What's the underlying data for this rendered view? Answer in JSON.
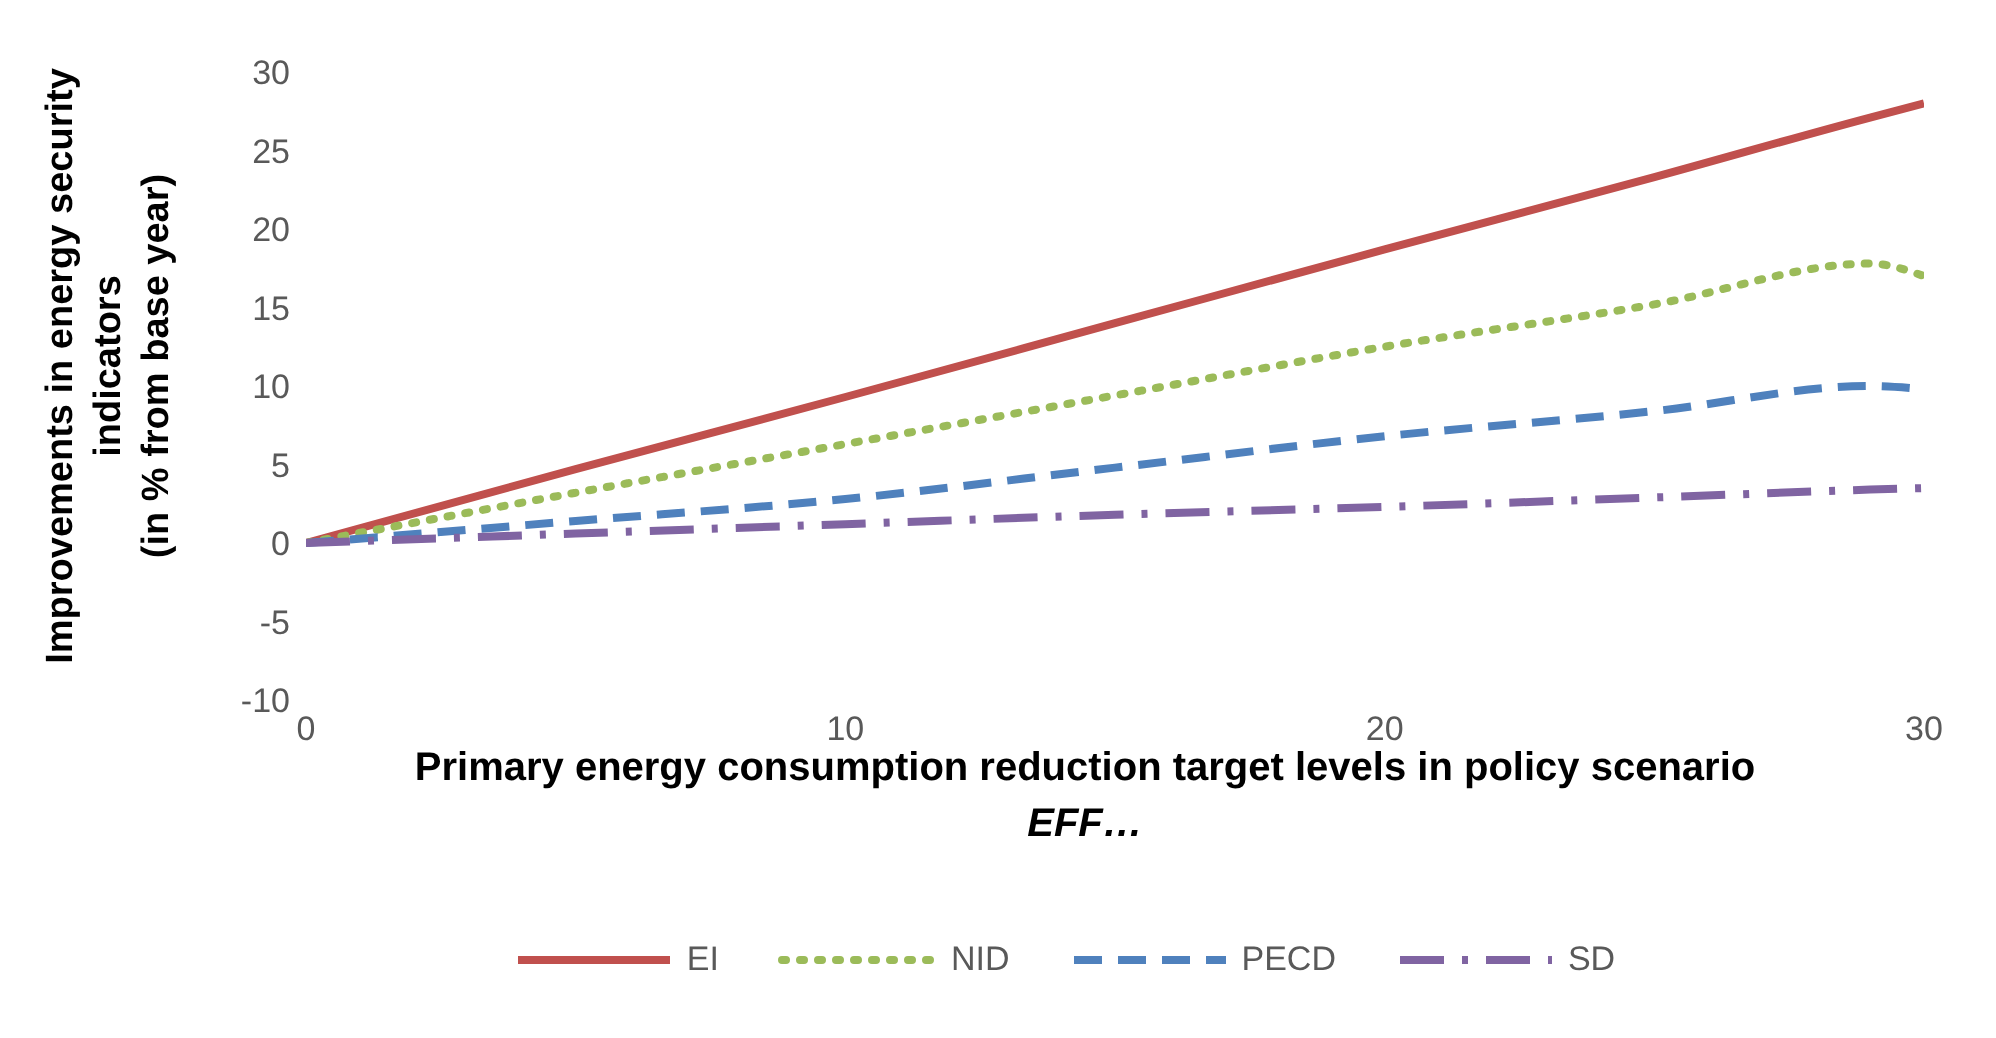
{
  "chart_data": {
    "type": "line",
    "xlabel": "Primary energy consumption reduction target levels in policy scenario EFF…",
    "ylabel": "Improvements in energy security indicators\n(in % from base year)",
    "x": [
      0,
      5,
      10,
      15,
      20,
      25,
      29,
      30
    ],
    "xlim": [
      0,
      30
    ],
    "xticks": [
      0,
      10,
      20,
      30
    ],
    "ylim": [
      -10,
      30
    ],
    "yticks": [
      -10,
      -5,
      0,
      5,
      10,
      15,
      20,
      25,
      30
    ],
    "grid": false,
    "legend": "bottom",
    "marker": "none",
    "series": [
      {
        "name": "EI",
        "color": "#c0504d",
        "line_style": "solid",
        "values": [
          0,
          4.7,
          9.3,
          14,
          18.7,
          23.3,
          27.1,
          28
        ]
      },
      {
        "name": "NID",
        "color": "#9bbb59",
        "line_style": "dotted",
        "values": [
          0,
          3.2,
          6.3,
          9.4,
          12.5,
          15.2,
          17.8,
          17
        ]
      },
      {
        "name": "PECD",
        "color": "#4f81bd",
        "line_style": "dashed",
        "values": [
          0,
          1.4,
          2.8,
          4.8,
          6.8,
          8.4,
          10,
          9.8
        ]
      },
      {
        "name": "SD",
        "color": "#8064a2",
        "line_style": "dashdot",
        "values": [
          0,
          0.6,
          1.2,
          1.8,
          2.3,
          2.9,
          3.4,
          3.5
        ]
      }
    ]
  }
}
